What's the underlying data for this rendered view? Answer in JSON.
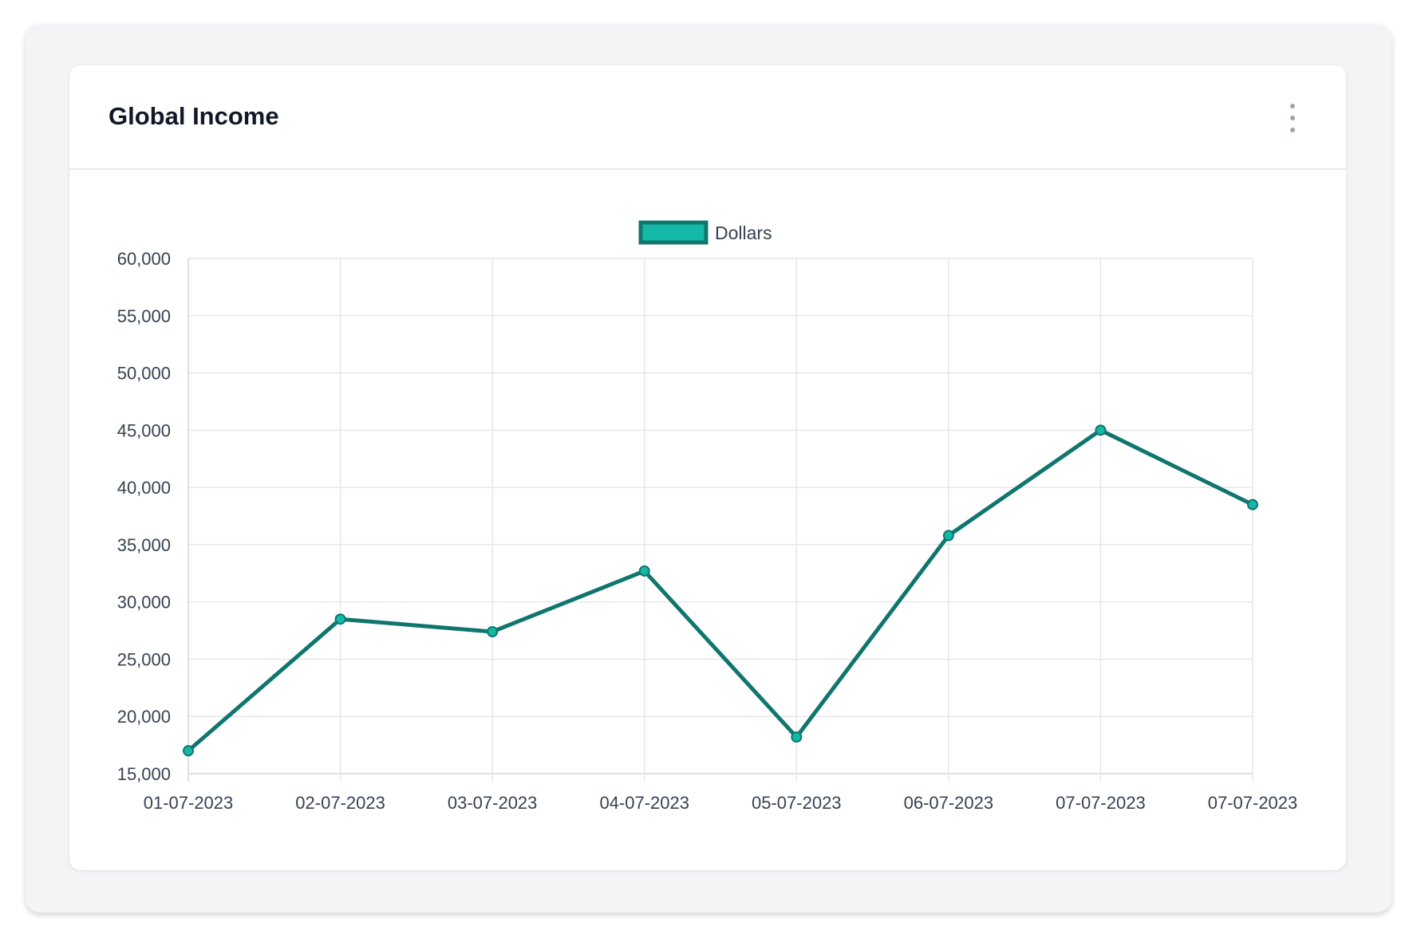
{
  "card": {
    "title": "Global Income",
    "menu_icon": "kebab-vertical-icon"
  },
  "chart_data": {
    "type": "line",
    "title": "",
    "xlabel": "",
    "ylabel": "",
    "categories": [
      "01-07-2023",
      "02-07-2023",
      "03-07-2023",
      "04-07-2023",
      "05-07-2023",
      "06-07-2023",
      "07-07-2023",
      "07-07-2023"
    ],
    "series": [
      {
        "name": "Dollars",
        "values": [
          17000,
          28500,
          27400,
          32700,
          18200,
          35800,
          45000,
          38500
        ],
        "color": "#0f766e",
        "point_color": "#14b8a6"
      }
    ],
    "ylim": [
      15000,
      60000
    ],
    "yticks": [
      15000,
      20000,
      25000,
      30000,
      35000,
      40000,
      45000,
      50000,
      55000,
      60000
    ],
    "ytick_labels": [
      "15,000",
      "20,000",
      "25,000",
      "30,000",
      "35,000",
      "40,000",
      "45,000",
      "50,000",
      "55,000",
      "60,000"
    ],
    "grid": true,
    "legend": "top"
  }
}
